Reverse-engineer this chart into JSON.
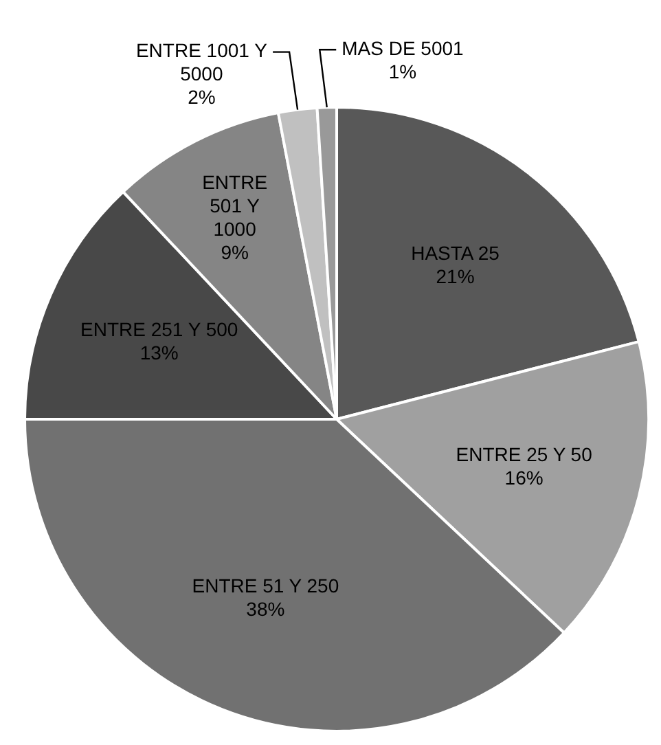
{
  "chart_data": {
    "type": "pie",
    "categories": [
      "HASTA 25",
      "ENTRE 25 Y 50",
      "ENTRE 51 Y 250",
      "ENTRE 251 Y 500",
      "ENTRE 501 Y 1000",
      "ENTRE 1001 Y 5000",
      "MAS DE 5001"
    ],
    "values": [
      21,
      16,
      38,
      13,
      9,
      2,
      1
    ],
    "value_labels": [
      "21%",
      "16%",
      "38%",
      "13%",
      "9%",
      "2%",
      "1%"
    ],
    "colors": [
      "#585858",
      "#a0a0a0",
      "#717171",
      "#484848",
      "#858585",
      "#c0c0c0",
      "#999999"
    ],
    "legend": false
  }
}
